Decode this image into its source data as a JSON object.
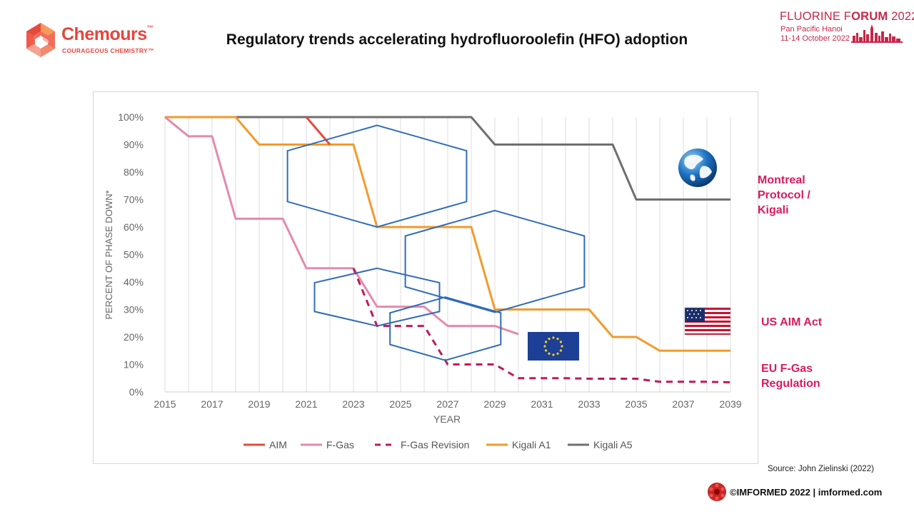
{
  "header": {
    "brand_name": "Chemours",
    "brand_tm": "™",
    "brand_tagline": "COURAGEOUS CHEMISTRY™",
    "title": "Regulatory trends accelerating hydrofluoroolefin (HFO) adoption"
  },
  "event": {
    "title_a": "FLUORINE F",
    "title_b": "O",
    "title_c": "RUM",
    "title_year": " 2022",
    "line2": "Pan Pacific Hanoi",
    "line3": "11-14 October 2022"
  },
  "side_labels": {
    "montreal": [
      "Montreal",
      "Protocol /",
      "Kigali"
    ],
    "us": "US AIM Act",
    "eu": [
      "EU F-Gas",
      "Regulation"
    ]
  },
  "footer": {
    "source": "Source: John Zielinski (2022)",
    "copyright": "©IMFORMED 2022  | imformed.com"
  },
  "colors": {
    "aim": "#e64a3f",
    "fgas": "#e589ad",
    "fgas_revision": "#c2185b",
    "kigali_a1": "#f39a2b",
    "kigali_a5": "#6f6f6f",
    "hexagon": "#2f6db5",
    "side_label": "#d81b60",
    "brand": "#e5463d"
  },
  "chart_data": {
    "type": "line",
    "xlabel": "YEAR",
    "ylabel": "PERCENT OF PHASE DOWN*",
    "xlim": [
      2015,
      2039
    ],
    "ylim": [
      0,
      100
    ],
    "x_ticks": [
      "2015",
      "2017",
      "2019",
      "2021",
      "2023",
      "2025",
      "2027",
      "2029",
      "2031",
      "2033",
      "2035",
      "2037",
      "2039"
    ],
    "y_ticks": [
      "0%",
      "10%",
      "20%",
      "30%",
      "40%",
      "50%",
      "60%",
      "70%",
      "80%",
      "90%",
      "100%"
    ],
    "grid": "vertical",
    "legend_position": "bottom",
    "series": [
      {
        "name": "AIM",
        "style": "solid",
        "points": [
          [
            2021,
            100
          ],
          [
            2022,
            90
          ]
        ]
      },
      {
        "name": "F-Gas",
        "style": "solid",
        "points": [
          [
            2015,
            100
          ],
          [
            2016,
            93
          ],
          [
            2017,
            93
          ],
          [
            2018,
            63
          ],
          [
            2019,
            63
          ],
          [
            2020,
            63
          ],
          [
            2021,
            45
          ],
          [
            2022,
            45
          ],
          [
            2023,
            45
          ],
          [
            2024,
            31
          ],
          [
            2025,
            31
          ],
          [
            2026,
            31
          ],
          [
            2027,
            24
          ],
          [
            2028,
            24
          ],
          [
            2029,
            24
          ],
          [
            2030,
            21
          ]
        ]
      },
      {
        "name": "F-Gas Revision",
        "style": "dashed",
        "points": [
          [
            2023,
            45
          ],
          [
            2024,
            24
          ],
          [
            2025,
            24
          ],
          [
            2026,
            24
          ],
          [
            2027,
            10
          ],
          [
            2028,
            10
          ],
          [
            2029,
            10
          ],
          [
            2030,
            5
          ],
          [
            2031,
            5
          ],
          [
            2032,
            5
          ],
          [
            2033,
            4.8
          ],
          [
            2034,
            4.8
          ],
          [
            2035,
            4.8
          ],
          [
            2036,
            3.7
          ],
          [
            2037,
            3.7
          ],
          [
            2038,
            3.7
          ],
          [
            2039,
            3.5
          ]
        ]
      },
      {
        "name": "Kigali A1",
        "style": "solid",
        "points": [
          [
            2015,
            100
          ],
          [
            2016,
            100
          ],
          [
            2017,
            100
          ],
          [
            2018,
            100
          ],
          [
            2019,
            90
          ],
          [
            2020,
            90
          ],
          [
            2021,
            90
          ],
          [
            2022,
            90
          ],
          [
            2023,
            90
          ],
          [
            2024,
            60
          ],
          [
            2025,
            60
          ],
          [
            2026,
            60
          ],
          [
            2027,
            60
          ],
          [
            2028,
            60
          ],
          [
            2029,
            30
          ],
          [
            2030,
            30
          ],
          [
            2031,
            30
          ],
          [
            2032,
            30
          ],
          [
            2033,
            30
          ],
          [
            2034,
            20
          ],
          [
            2035,
            20
          ],
          [
            2036,
            15
          ],
          [
            2037,
            15
          ],
          [
            2038,
            15
          ],
          [
            2039,
            15
          ]
        ]
      },
      {
        "name": "Kigali A5",
        "style": "solid",
        "points": [
          [
            2018,
            100
          ],
          [
            2019,
            100
          ],
          [
            2020,
            100
          ],
          [
            2021,
            100
          ],
          [
            2022,
            100
          ],
          [
            2023,
            100
          ],
          [
            2024,
            100
          ],
          [
            2025,
            100
          ],
          [
            2026,
            100
          ],
          [
            2027,
            100
          ],
          [
            2028,
            100
          ],
          [
            2029,
            90
          ],
          [
            2030,
            90
          ],
          [
            2031,
            90
          ],
          [
            2032,
            90
          ],
          [
            2033,
            90
          ],
          [
            2034,
            90
          ],
          [
            2035,
            70
          ],
          [
            2036,
            70
          ],
          [
            2037,
            70
          ],
          [
            2038,
            70
          ],
          [
            2039,
            70
          ]
        ]
      }
    ],
    "hexagon_markers": [
      {
        "x": 2024,
        "y": 78.5,
        "rx": 3.8,
        "ry": 18.5
      },
      {
        "x": 2029,
        "y": 47.5,
        "rx": 3.8,
        "ry": 18.5
      },
      {
        "x": 2024,
        "y": 34.5,
        "rx": 2.65,
        "ry": 10.5
      },
      {
        "x": 2026.9,
        "y": 23,
        "rx": 2.35,
        "ry": 11.5
      }
    ],
    "icons": [
      "globe-icon",
      "us-flag-icon",
      "eu-flag-icon"
    ]
  }
}
